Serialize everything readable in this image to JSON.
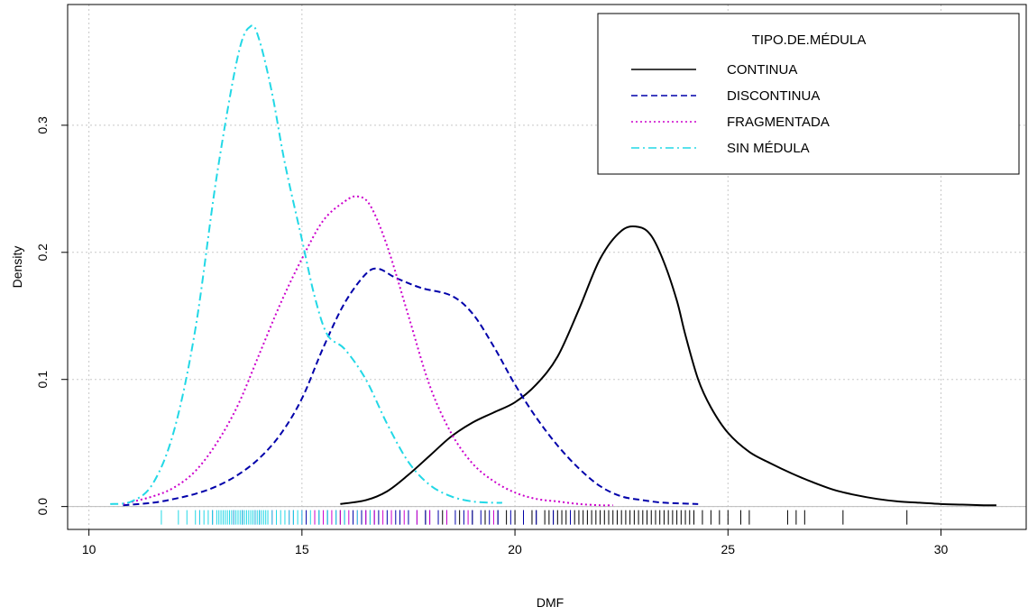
{
  "chart_data": {
    "type": "line",
    "subtype": "kernel-density",
    "xlabel": "DMF",
    "ylabel": "Density",
    "xlim": [
      9.5,
      32.0
    ],
    "ylim": [
      -0.018,
      0.395
    ],
    "x_ticks": [
      10,
      15,
      20,
      25,
      30
    ],
    "y_ticks": [
      0.0,
      0.1,
      0.2,
      0.3
    ],
    "x_tick_labels": [
      "10",
      "15",
      "20",
      "25",
      "30"
    ],
    "y_tick_labels": [
      "0.0",
      "0.1",
      "0.2",
      "0.3"
    ],
    "grid": true,
    "legend": {
      "title": "TIPO.DE.MÉDULA",
      "position": "top-right",
      "entries": [
        "CONTINUA",
        "DISCONTINUA",
        "FRAGMENTADA",
        "SIN MÉDULA"
      ]
    },
    "series": [
      {
        "name": "CONTINUA",
        "color": "#000000",
        "dash": "solid",
        "x": [
          15.9,
          16.5,
          17.0,
          17.5,
          18.0,
          18.5,
          19.0,
          19.5,
          20.0,
          20.5,
          21.0,
          21.5,
          22.0,
          22.5,
          22.9,
          23.2,
          23.5,
          23.8,
          24.0,
          24.3,
          24.6,
          25.0,
          25.5,
          26.0,
          26.5,
          27.0,
          27.5,
          28.0,
          28.5,
          29.0,
          29.5,
          30.0,
          30.5,
          31.0,
          31.3
        ],
        "y": [
          0.002,
          0.005,
          0.012,
          0.025,
          0.04,
          0.055,
          0.066,
          0.074,
          0.082,
          0.096,
          0.118,
          0.155,
          0.195,
          0.217,
          0.22,
          0.213,
          0.192,
          0.162,
          0.135,
          0.1,
          0.078,
          0.058,
          0.043,
          0.034,
          0.026,
          0.019,
          0.013,
          0.009,
          0.006,
          0.004,
          0.003,
          0.002,
          0.0015,
          0.001,
          0.001
        ]
      },
      {
        "name": "DISCONTINUA",
        "color": "#0000aa",
        "dash": "dashed",
        "x": [
          10.8,
          11.5,
          12.0,
          12.5,
          13.0,
          13.5,
          14.0,
          14.5,
          15.0,
          15.5,
          16.0,
          16.5,
          16.8,
          17.2,
          17.8,
          18.5,
          19.0,
          19.5,
          20.0,
          20.5,
          21.0,
          21.5,
          22.0,
          22.5,
          23.0,
          23.5,
          24.3
        ],
        "y": [
          0.001,
          0.003,
          0.006,
          0.01,
          0.016,
          0.025,
          0.038,
          0.057,
          0.085,
          0.125,
          0.16,
          0.183,
          0.187,
          0.18,
          0.172,
          0.166,
          0.152,
          0.126,
          0.096,
          0.07,
          0.048,
          0.03,
          0.016,
          0.008,
          0.005,
          0.003,
          0.002
        ]
      },
      {
        "name": "FRAGMENTADA",
        "color": "#cc00cc",
        "dash": "dotted",
        "x": [
          10.8,
          11.5,
          12.0,
          12.5,
          13.0,
          13.5,
          14.0,
          14.5,
          15.0,
          15.5,
          16.0,
          16.3,
          16.6,
          17.0,
          17.5,
          18.0,
          18.5,
          19.0,
          19.5,
          20.0,
          20.5,
          21.0,
          21.5,
          22.0,
          22.3
        ],
        "y": [
          0.002,
          0.008,
          0.015,
          0.028,
          0.05,
          0.08,
          0.12,
          0.16,
          0.195,
          0.225,
          0.24,
          0.244,
          0.237,
          0.205,
          0.15,
          0.095,
          0.058,
          0.034,
          0.02,
          0.011,
          0.006,
          0.004,
          0.002,
          0.001,
          0.001
        ]
      },
      {
        "name": "SIN MÉDULA",
        "color": "#22d8e6",
        "dash": "dashdot",
        "x": [
          10.5,
          11.0,
          11.5,
          12.0,
          12.5,
          13.0,
          13.5,
          13.8,
          14.0,
          14.3,
          14.6,
          15.0,
          15.3,
          15.6,
          16.0,
          16.5,
          17.0,
          17.5,
          18.0,
          18.5,
          19.0,
          19.5,
          19.7
        ],
        "y": [
          0.002,
          0.004,
          0.018,
          0.06,
          0.14,
          0.26,
          0.355,
          0.378,
          0.367,
          0.325,
          0.27,
          0.21,
          0.165,
          0.135,
          0.124,
          0.1,
          0.065,
          0.035,
          0.017,
          0.008,
          0.004,
          0.003,
          0.003
        ]
      }
    ],
    "rug": {
      "continua": [
        15.9,
        16.6,
        17.3,
        17.9,
        18.3,
        18.7,
        19.0,
        19.3,
        19.6,
        19.8,
        20.0,
        20.2,
        20.4,
        20.5,
        20.7,
        20.8,
        20.9,
        21.0,
        21.1,
        21.2,
        21.3,
        21.4,
        21.5,
        21.6,
        21.7,
        21.8,
        21.9,
        22.0,
        22.1,
        22.2,
        22.3,
        22.4,
        22.5,
        22.6,
        22.7,
        22.8,
        22.9,
        23.0,
        23.1,
        23.2,
        23.3,
        23.4,
        23.5,
        23.6,
        23.7,
        23.8,
        23.9,
        24.0,
        24.1,
        24.2,
        24.4,
        24.6,
        24.8,
        25.0,
        25.3,
        25.5,
        26.4,
        26.6,
        26.8,
        27.7,
        29.2
      ],
      "discontinua": [
        12.9,
        13.6,
        14.0,
        14.4,
        14.8,
        15.1,
        15.4,
        15.6,
        15.8,
        16.0,
        16.2,
        16.4,
        16.5,
        16.7,
        16.8,
        17.0,
        17.2,
        17.3,
        17.5,
        17.7,
        17.9,
        18.0,
        18.2,
        18.4,
        18.6,
        18.8,
        19.0,
        19.2,
        19.4,
        19.6,
        19.9,
        20.2,
        20.5,
        20.9,
        21.3
      ],
      "fragmentada": [
        12.6,
        13.4,
        13.9,
        14.3,
        14.7,
        15.0,
        15.3,
        15.5,
        15.7,
        15.9,
        16.1,
        16.3,
        16.5,
        16.7,
        16.9,
        17.1,
        17.4,
        17.7,
        18.0,
        18.4,
        18.9,
        19.5
      ],
      "sin_medula": [
        11.7,
        12.1,
        12.3,
        12.5,
        12.6,
        12.7,
        12.8,
        12.9,
        13.0,
        13.05,
        13.1,
        13.15,
        13.2,
        13.25,
        13.3,
        13.35,
        13.4,
        13.45,
        13.5,
        13.55,
        13.6,
        13.65,
        13.7,
        13.75,
        13.8,
        13.85,
        13.9,
        13.95,
        14.0,
        14.05,
        14.1,
        14.15,
        14.2,
        14.3,
        14.4,
        14.5,
        14.6,
        14.7,
        14.8,
        14.9,
        15.0,
        15.2,
        15.4,
        15.6,
        15.8,
        16.0,
        16.3,
        16.6
      ]
    }
  }
}
